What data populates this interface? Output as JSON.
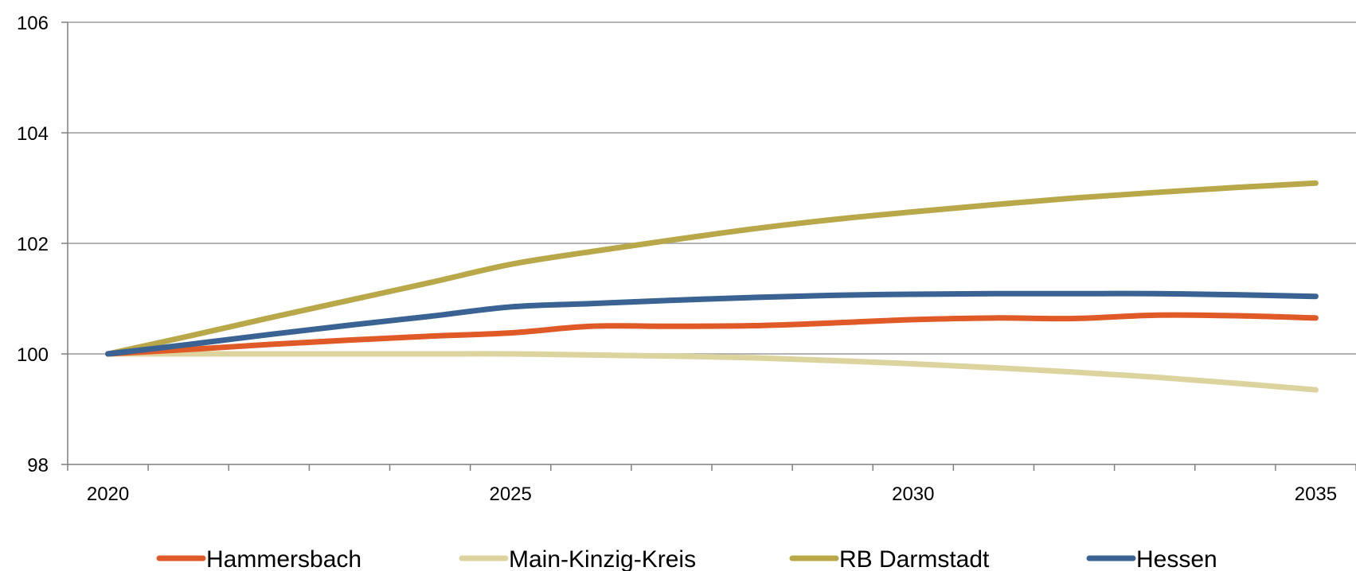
{
  "chart_data": {
    "type": "line",
    "title": "",
    "xlabel": "",
    "ylabel": "",
    "x": [
      2020,
      2021,
      2022,
      2023,
      2024,
      2025,
      2026,
      2027,
      2028,
      2029,
      2030,
      2031,
      2032,
      2033,
      2034,
      2035
    ],
    "x_ticks": [
      2020,
      2025,
      2030,
      2035
    ],
    "x_tick_labels": [
      "2020",
      "2025",
      "2030",
      "2035"
    ],
    "xlim": [
      2019.5,
      2035.5
    ],
    "ylim": [
      98,
      106
    ],
    "y_ticks": [
      98,
      100,
      102,
      104,
      106
    ],
    "y_tick_labels": [
      "98",
      "100",
      "102",
      "104",
      "106"
    ],
    "grid": "horizontal",
    "legend_position": "bottom",
    "series": [
      {
        "name": "Hammersbach",
        "color": "#e05a28",
        "values": [
          100,
          100.08,
          100.17,
          100.25,
          100.32,
          100.38,
          100.5,
          100.5,
          100.51,
          100.56,
          100.62,
          100.65,
          100.64,
          100.7,
          100.69,
          100.65
        ]
      },
      {
        "name": "Main-Kinzig-Kreis",
        "color": "#ddd39e",
        "values": [
          100,
          100,
          100,
          100,
          100,
          100,
          99.98,
          99.96,
          99.93,
          99.88,
          99.82,
          99.75,
          99.67,
          99.58,
          99.47,
          99.35
        ]
      },
      {
        "name": "RB Darmstadt",
        "color": "#b8a84a",
        "values": [
          100,
          100.32,
          100.65,
          100.97,
          101.29,
          101.62,
          101.85,
          102.06,
          102.26,
          102.43,
          102.57,
          102.7,
          102.82,
          102.92,
          103.01,
          103.09
        ]
      },
      {
        "name": "Hessen",
        "color": "#3a6292",
        "values": [
          100,
          100.17,
          100.35,
          100.52,
          100.68,
          100.85,
          100.91,
          100.97,
          101.02,
          101.06,
          101.08,
          101.09,
          101.09,
          101.09,
          101.07,
          101.04
        ]
      }
    ]
  }
}
